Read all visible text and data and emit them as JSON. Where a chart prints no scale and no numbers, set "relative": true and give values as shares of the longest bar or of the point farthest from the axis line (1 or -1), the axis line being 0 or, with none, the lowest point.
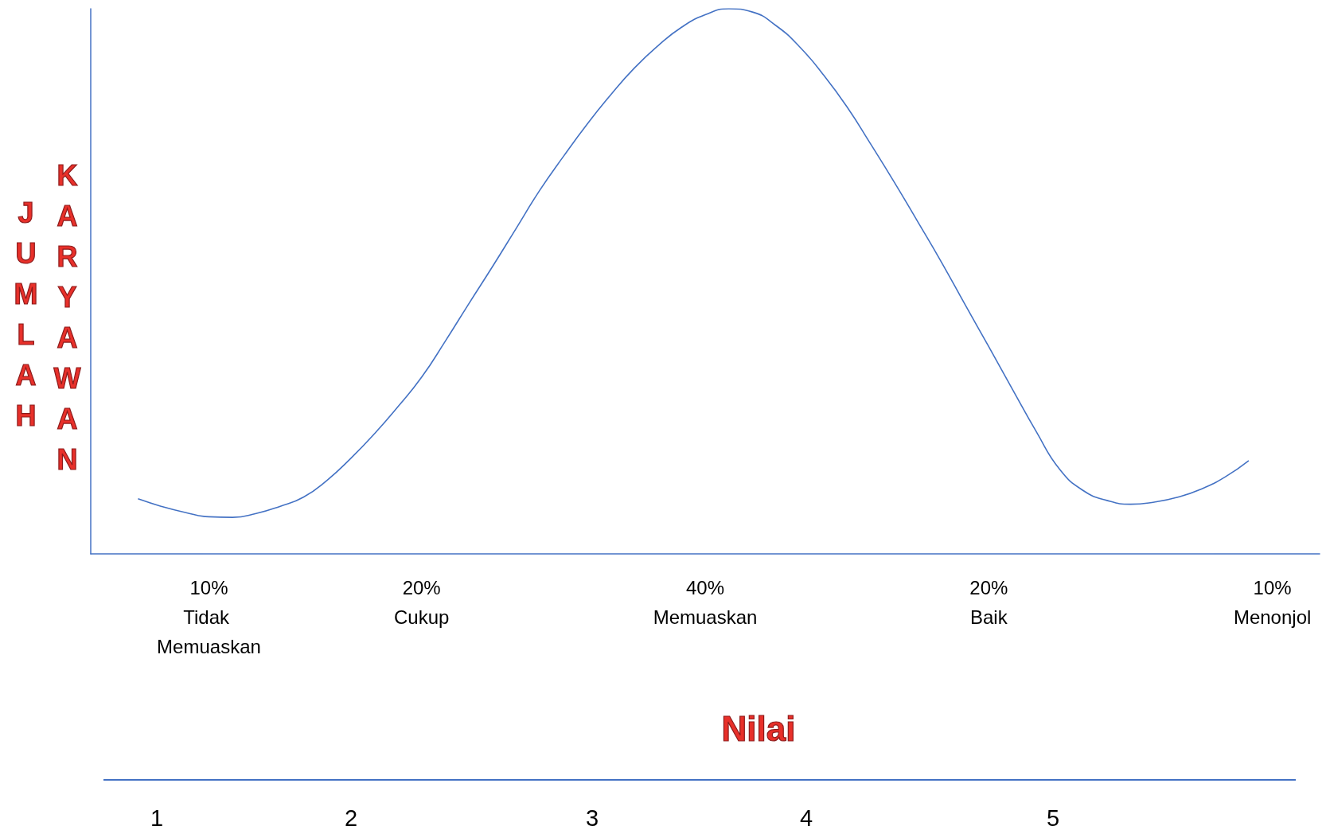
{
  "chart_data": {
    "type": "line",
    "relative": true,
    "color": "#4472c4",
    "ylabel": "JUMLAH KARYAWAN",
    "xlabel": "Nilai",
    "categories": [
      null,
      null,
      null,
      null,
      null,
      "10% Tidak Memuaskan",
      null,
      null,
      null,
      null,
      null,
      null,
      null,
      null,
      "20% Cukup",
      null,
      null,
      null,
      null,
      null,
      null,
      null,
      null,
      null,
      null,
      null,
      "40% Memuaskan",
      null,
      null,
      null,
      null,
      null,
      null,
      null,
      null,
      null,
      null,
      null,
      "20% Baik",
      null,
      null,
      null,
      null,
      null,
      null,
      null,
      null,
      null,
      null,
      null,
      "10% Menonjol",
      null,
      null
    ],
    "values": [
      null,
      null,
      0.101,
      0.087,
      0.076,
      0.068,
      0.067,
      0.074,
      0.087,
      0.104,
      0.135,
      0.175,
      0.22,
      0.27,
      0.324,
      0.39,
      0.459,
      0.527,
      0.597,
      0.667,
      0.729,
      0.788,
      0.842,
      0.891,
      0.932,
      0.966,
      0.989,
      1,
      0.994,
      0.969,
      0.93,
      0.879,
      0.82,
      0.752,
      0.682,
      0.609,
      0.535,
      0.457,
      0.38,
      0.302,
      0.225,
      0.155,
      0.116,
      0.098,
      0.091,
      0.095,
      0.104,
      0.119,
      0.141,
      0.171,
      null,
      null,
      null
    ],
    "annotations": [
      "1",
      "2",
      "3",
      "4",
      "5"
    ]
  }
}
